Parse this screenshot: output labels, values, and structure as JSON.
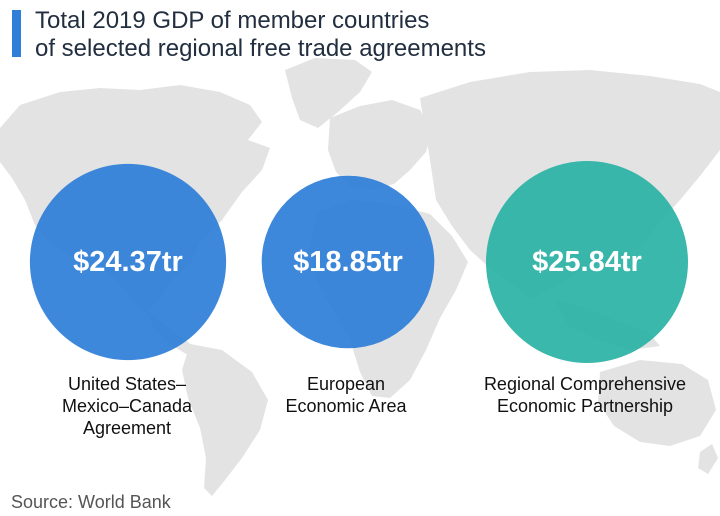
{
  "title_lines": [
    "Total 2019 GDP of member countries",
    "of selected regional free trade agreements"
  ],
  "source": "Source: World Bank",
  "chart_data": {
    "type": "bubble",
    "title": "Total 2019 GDP of member countries of selected regional free trade agreements",
    "unit": "tr",
    "series": [
      {
        "category_lines": [
          "United States–",
          "Mexico–Canada",
          "Agreement"
        ],
        "value": 24.37,
        "value_label": "$24.37tr",
        "color": "#2f7fd8"
      },
      {
        "category_lines": [
          "European",
          "Economic Area"
        ],
        "value": 18.85,
        "value_label": "$18.85tr",
        "color": "#2f7fd8"
      },
      {
        "category_lines": [
          "Regional Comprehensive",
          "Economic Partnership"
        ],
        "value": 25.84,
        "value_label": "$25.84tr",
        "color": "#2bb3a6"
      }
    ]
  }
}
